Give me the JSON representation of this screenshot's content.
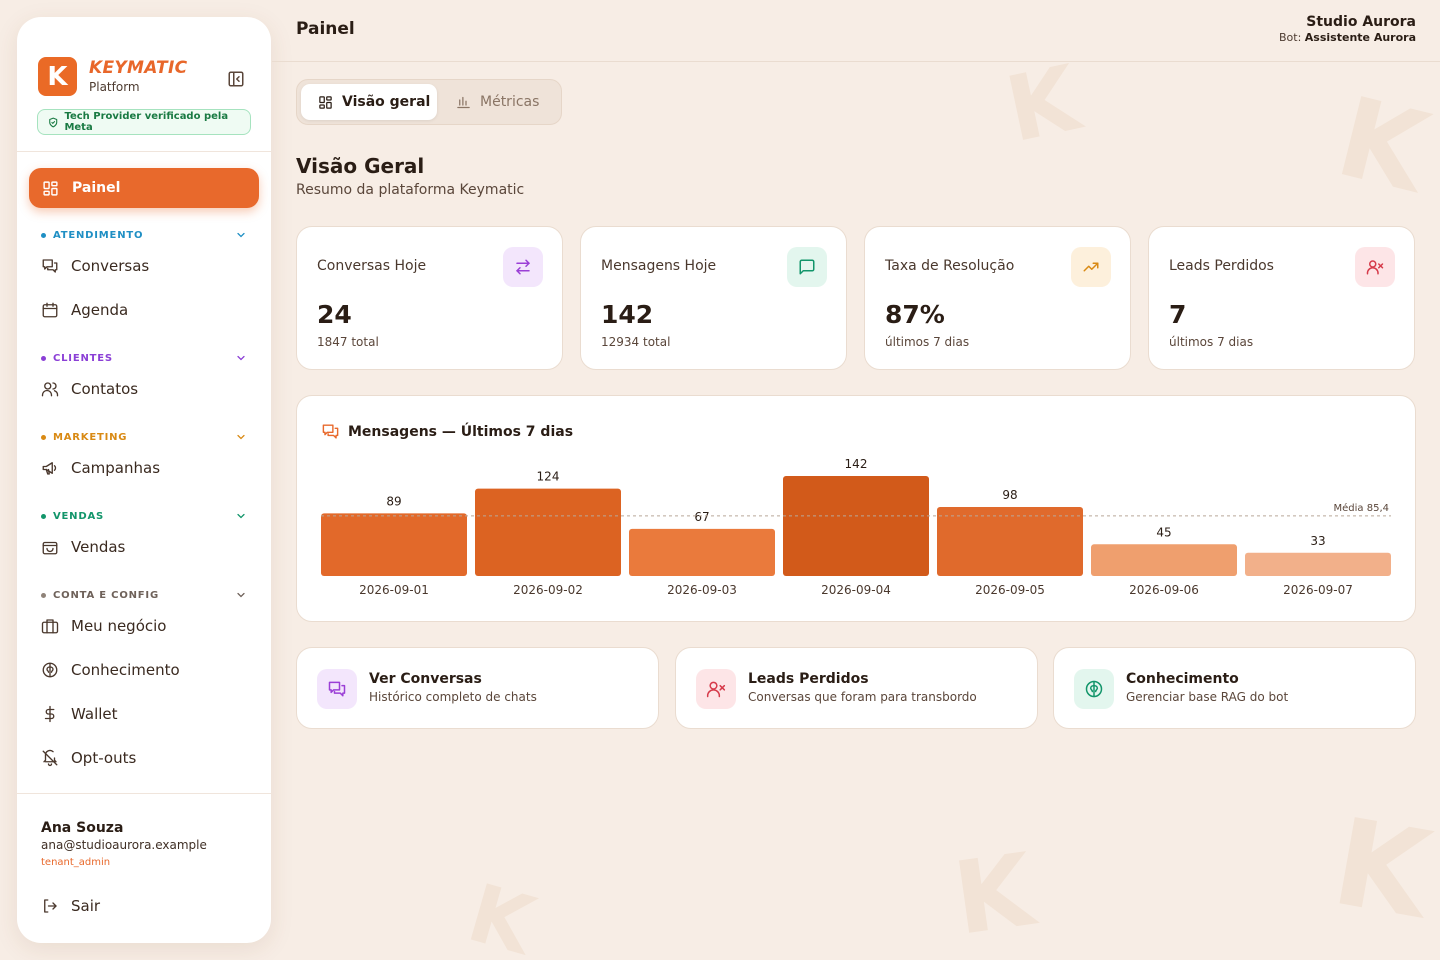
{
  "colors": {
    "accent": "#e8692c",
    "background": "#f7ede5",
    "verified_green": "#1a7a43",
    "atendimento": "#1f8fc4",
    "clientes": "#8b3fd6",
    "marketing": "#d98a14",
    "vendas": "#12956a",
    "conta": "#8f8379"
  },
  "sidebar": {
    "brand_name": "KEYMATIC",
    "brand_sub": "Platform",
    "verified_badge": "Tech Provider verificado pela Meta",
    "active_item": "Painel",
    "sections": [
      {
        "label": "ATENDIMENTO",
        "items": [
          {
            "label": "Conversas",
            "icon": "chat-icon"
          },
          {
            "label": "Agenda",
            "icon": "calendar-icon"
          }
        ]
      },
      {
        "label": "CLIENTES",
        "items": [
          {
            "label": "Contatos",
            "icon": "users-icon"
          }
        ]
      },
      {
        "label": "MARKETING",
        "items": [
          {
            "label": "Campanhas",
            "icon": "megaphone-icon"
          }
        ]
      },
      {
        "label": "VENDAS",
        "items": [
          {
            "label": "Vendas",
            "icon": "bag-icon"
          }
        ]
      },
      {
        "label": "CONTA E CONFIG",
        "items": [
          {
            "label": "Meu negócio",
            "icon": "briefcase-icon"
          },
          {
            "label": "Conhecimento",
            "icon": "brain-icon"
          },
          {
            "label": "Wallet",
            "icon": "dollar-icon"
          },
          {
            "label": "Opt-outs",
            "icon": "bell-off-icon"
          }
        ]
      }
    ],
    "user": {
      "name": "Ana Souza",
      "email": "ana@studioaurora.example",
      "role": "tenant_admin"
    },
    "logout": "Sair"
  },
  "topbar": {
    "title": "Painel",
    "tenant": "Studio Aurora",
    "bot_prefix": "Bot:",
    "bot_name": "Assistente Aurora"
  },
  "tabs": [
    {
      "label": "Visão geral",
      "icon": "grid-icon",
      "active": true
    },
    {
      "label": "Métricas",
      "icon": "bar-chart-icon",
      "active": false
    }
  ],
  "main": {
    "title": "Visão Geral",
    "subtitle": "Resumo da plataforma Keymatic"
  },
  "stats": [
    {
      "label": "Conversas Hoje",
      "value": "24",
      "sub": "1847 total",
      "icon": "arrows-swap-icon",
      "icon_color": "#9b3fd6",
      "icon_bg": "#f3e6fc"
    },
    {
      "label": "Mensagens Hoje",
      "value": "142",
      "sub": "12934 total",
      "icon": "message-square-icon",
      "icon_color": "#12956a",
      "icon_bg": "#e3f6ee"
    },
    {
      "label": "Taxa de Resolução",
      "value": "87%",
      "sub": "últimos 7 dias",
      "icon": "trending-up-icon",
      "icon_color": "#d98a14",
      "icon_bg": "#fdf0dc"
    },
    {
      "label": "Leads Perdidos",
      "value": "7",
      "sub": "últimos 7 dias",
      "icon": "user-x-icon",
      "icon_color": "#d63a4a",
      "icon_bg": "#fde5e7"
    }
  ],
  "chart_data": {
    "type": "bar",
    "title": "Mensagens — Últimos 7 dias",
    "categories": [
      "2026-09-01",
      "2026-09-02",
      "2026-09-03",
      "2026-09-04",
      "2026-09-05",
      "2026-09-06",
      "2026-09-07"
    ],
    "values": [
      89,
      124,
      67,
      142,
      98,
      45,
      33
    ],
    "average": 85.4,
    "average_label": "Média 85,4",
    "bar_colors": [
      "#e2692a",
      "#dc6322",
      "#ea7a3c",
      "#d25a1a",
      "#e06a2c",
      "#ef9f6e",
      "#f2b08a"
    ],
    "grid": false,
    "legend": "none"
  },
  "quick_links": [
    {
      "title": "Ver Conversas",
      "sub": "Histórico completo de chats",
      "icon": "chat-icon",
      "icon_color": "#9b3fd6",
      "icon_bg": "#f3e6fc"
    },
    {
      "title": "Leads Perdidos",
      "sub": "Conversas que foram para transbordo",
      "icon": "user-x-icon",
      "icon_color": "#d63a4a",
      "icon_bg": "#fde5e7"
    },
    {
      "title": "Conhecimento",
      "sub": "Gerenciar base RAG do bot",
      "icon": "brain-icon",
      "icon_color": "#12956a",
      "icon_bg": "#e3f6ee"
    }
  ]
}
